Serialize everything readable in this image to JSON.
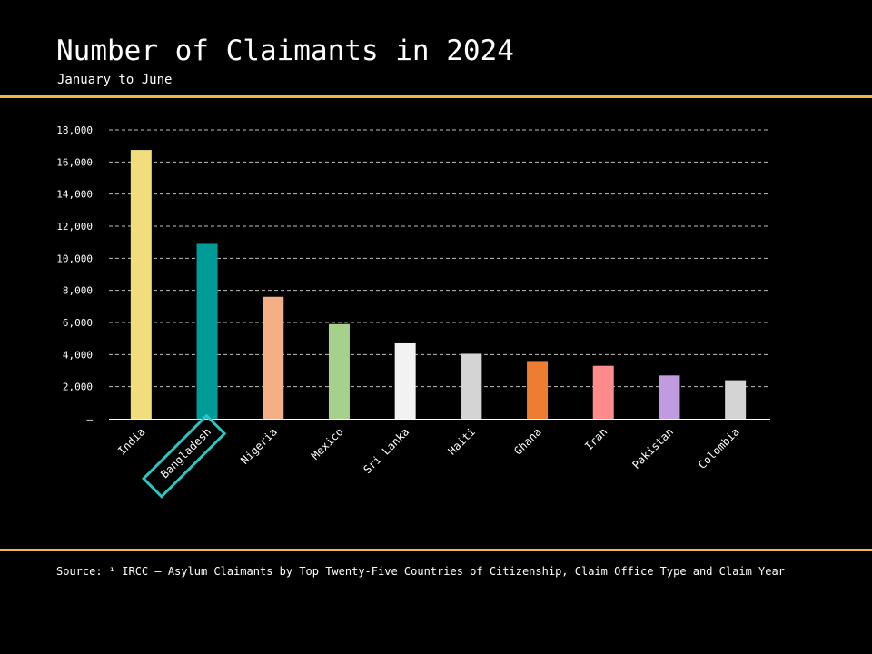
{
  "chart_data": {
    "type": "bar",
    "title": "Number of Claimants in 2024",
    "subtitle": "January to June",
    "xlabel": "",
    "ylabel": "",
    "categories": [
      "India",
      "Bangladesh",
      "Nigeria",
      "Mexico",
      "Sri Lanka",
      "Haiti",
      "Ghana",
      "Iran",
      "Pakistan",
      "Colombia"
    ],
    "values": [
      16750,
      10900,
      7600,
      5900,
      4700,
      4050,
      3600,
      3300,
      2700,
      2400
    ],
    "bar_colors": [
      "#F1DC7E",
      "#009B98",
      "#F4AF84",
      "#A8D08D",
      "#F2F2F2",
      "#D4D4D4",
      "#ED7D31",
      "#FF8B8B",
      "#C09BE0",
      "#D4D4D4"
    ],
    "ylim": [
      0,
      18000
    ],
    "yticks": [
      0,
      2000,
      4000,
      6000,
      8000,
      10000,
      12000,
      14000,
      16000,
      18000
    ],
    "ytick_labels": [
      "–",
      "2,000",
      "4,000",
      "6,000",
      "8,000",
      "10,000",
      "12,000",
      "14,000",
      "16,000",
      "18,000"
    ],
    "grid": true,
    "highlighted_category": "Bangladesh",
    "highlight_color": "#2EC4C0"
  },
  "source": "Source: ¹ IRCC – Asylum Claimants by Top Twenty-Five Countries of Citizenship, Claim Office Type and Claim Year",
  "colors": {
    "background": "#000000",
    "text": "#FFFFFF",
    "rule": "#F0B841",
    "grid": "#BFBFBF",
    "axis": "#FFFFFF"
  }
}
